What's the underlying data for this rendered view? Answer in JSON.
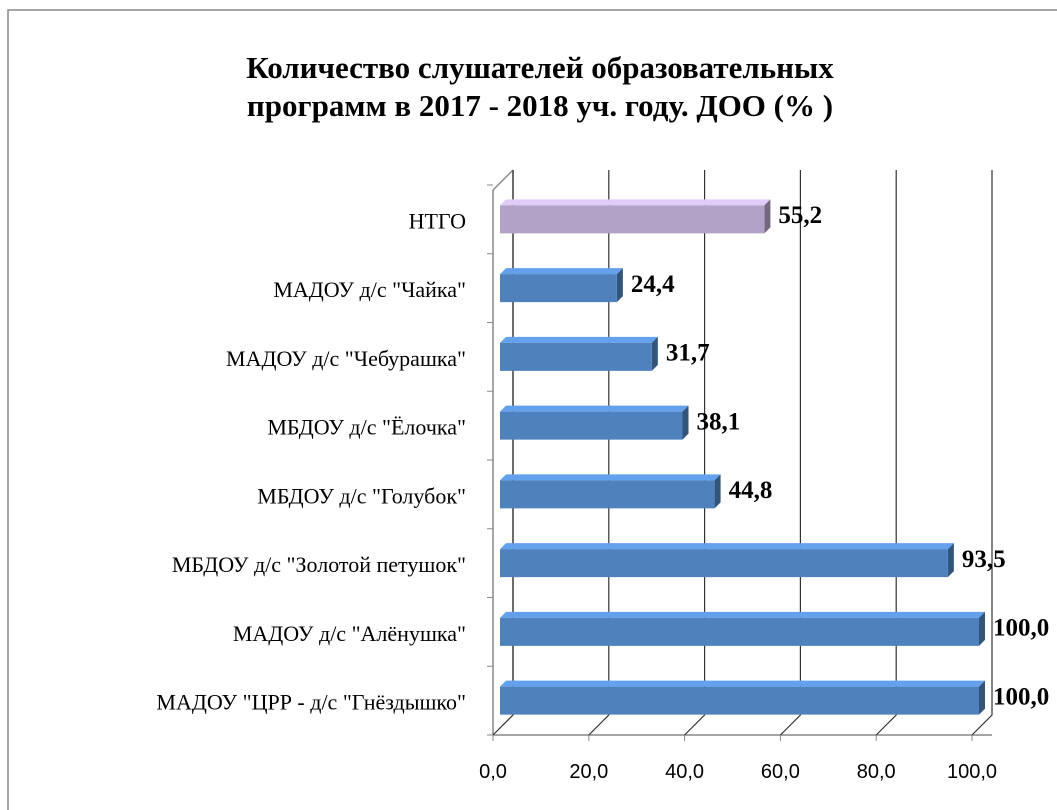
{
  "chart_data": {
    "type": "bar",
    "orientation": "horizontal",
    "title": "Количество слушателей образовательных программ в 2017 - 2018 уч. году. ДОО (% )",
    "title_lines": [
      "Количество слушателей образовательных",
      "программ в 2017 - 2018 уч. году. ДОО (% )"
    ],
    "categories": [
      "НТГО",
      "МАДОУ д/с \"Чайка\"",
      "МАДОУ д/с \"Чебурашка\"",
      "МБДОУ д/с \"Ёлочка\"",
      "МБДОУ д/с \"Голубок\"",
      "МБДОУ д/с \"Золотой петушок\"",
      "МАДОУ д/с \"Алёнушка\"",
      "МАДОУ \"ЦРР - д/с \"Гнёздышко\""
    ],
    "values": [
      55.2,
      24.4,
      31.7,
      38.1,
      44.8,
      93.5,
      100.0,
      100.0
    ],
    "value_labels": [
      "55,2",
      "24,4",
      "31,7",
      "38,1",
      "44,8",
      "93,5",
      "100,0",
      "100,0"
    ],
    "colors": [
      "#b3a2c7",
      "#4f81bd",
      "#4f81bd",
      "#4f81bd",
      "#4f81bd",
      "#4f81bd",
      "#4f81bd",
      "#4f81bd"
    ],
    "xlim": [
      0,
      100
    ],
    "xticks": [
      {
        "value": 0,
        "label": "0,0"
      },
      {
        "value": 20,
        "label": "20,0"
      },
      {
        "value": 40,
        "label": "40,0"
      },
      {
        "value": 60,
        "label": "60,0"
      },
      {
        "value": 80,
        "label": "80,0"
      },
      {
        "value": 100,
        "label": "100,0"
      }
    ],
    "grid": true
  }
}
